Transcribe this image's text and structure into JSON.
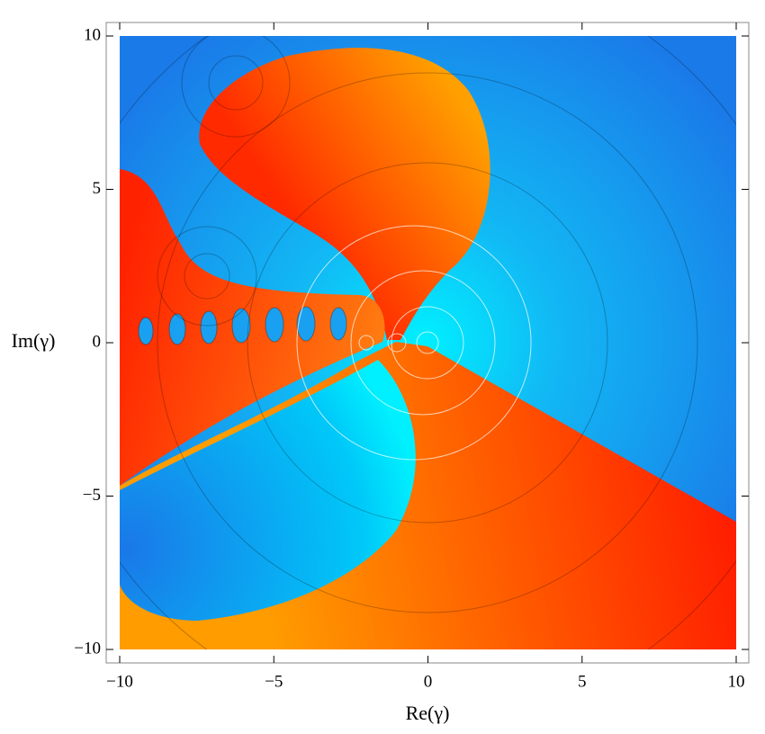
{
  "chart_data": {
    "type": "complex-plot",
    "xlabel": "Re(γ)",
    "ylabel": "Im(γ)",
    "xlim": [
      -10,
      10
    ],
    "ylim": [
      -10,
      10
    ],
    "xticks": [
      {
        "value": -10,
        "label": "−10"
      },
      {
        "value": -5,
        "label": "−5"
      },
      0,
      5,
      10
    ],
    "yticks": [
      {
        "value": -10,
        "label": "−10"
      },
      {
        "value": -5,
        "label": "−5"
      },
      0,
      5,
      10
    ]
  }
}
